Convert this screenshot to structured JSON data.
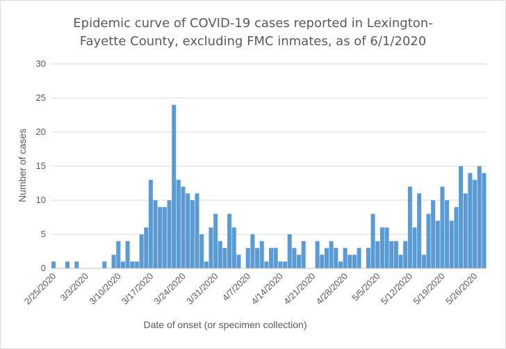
{
  "chart_data": {
    "type": "bar",
    "title_line1": "Epidemic curve of COVID-19 cases reported in Lexington-",
    "title_line2": "Fayette County, excluding FMC inmates, as of 6/1/2020",
    "xlabel": "Date of onset (or specimen collection)",
    "ylabel": "Number of cases",
    "ylim": [
      0,
      30
    ],
    "y_ticks": [
      0,
      5,
      10,
      15,
      20,
      25,
      30
    ],
    "x_tick_labels": [
      "2/25/2020",
      "3/3/2020",
      "3/10/2020",
      "3/17/2020",
      "3/24/2020",
      "3/31/2020",
      "4/7/2020",
      "4/14/2020",
      "4/21/2020",
      "4/28/2020",
      "5/5/2020",
      "5/12/2020",
      "5/19/2020",
      "5/26/2020"
    ],
    "start_date": "2/25/2020",
    "values": [
      1,
      0,
      0,
      1,
      0,
      1,
      0,
      0,
      0,
      0,
      0,
      1,
      0,
      2,
      4,
      1,
      4,
      1,
      1,
      5,
      6,
      13,
      10,
      9,
      9,
      10,
      24,
      13,
      12,
      11,
      10,
      11,
      5,
      1,
      6,
      8,
      4,
      3,
      8,
      6,
      2,
      0,
      3,
      5,
      3,
      4,
      1,
      3,
      3,
      1,
      1,
      5,
      3,
      2,
      4,
      0,
      0,
      4,
      2,
      3,
      4,
      3,
      1,
      3,
      2,
      2,
      3,
      0,
      3,
      8,
      4,
      6,
      6,
      4,
      4,
      2,
      4,
      12,
      6,
      11,
      2,
      8,
      10,
      7,
      12,
      10,
      7,
      9,
      15,
      11,
      14,
      13,
      15,
      14
    ],
    "grid": true,
    "bar_color": "#5b9bd5",
    "grid_color": "#d9d9d9",
    "text_color": "#595959"
  }
}
